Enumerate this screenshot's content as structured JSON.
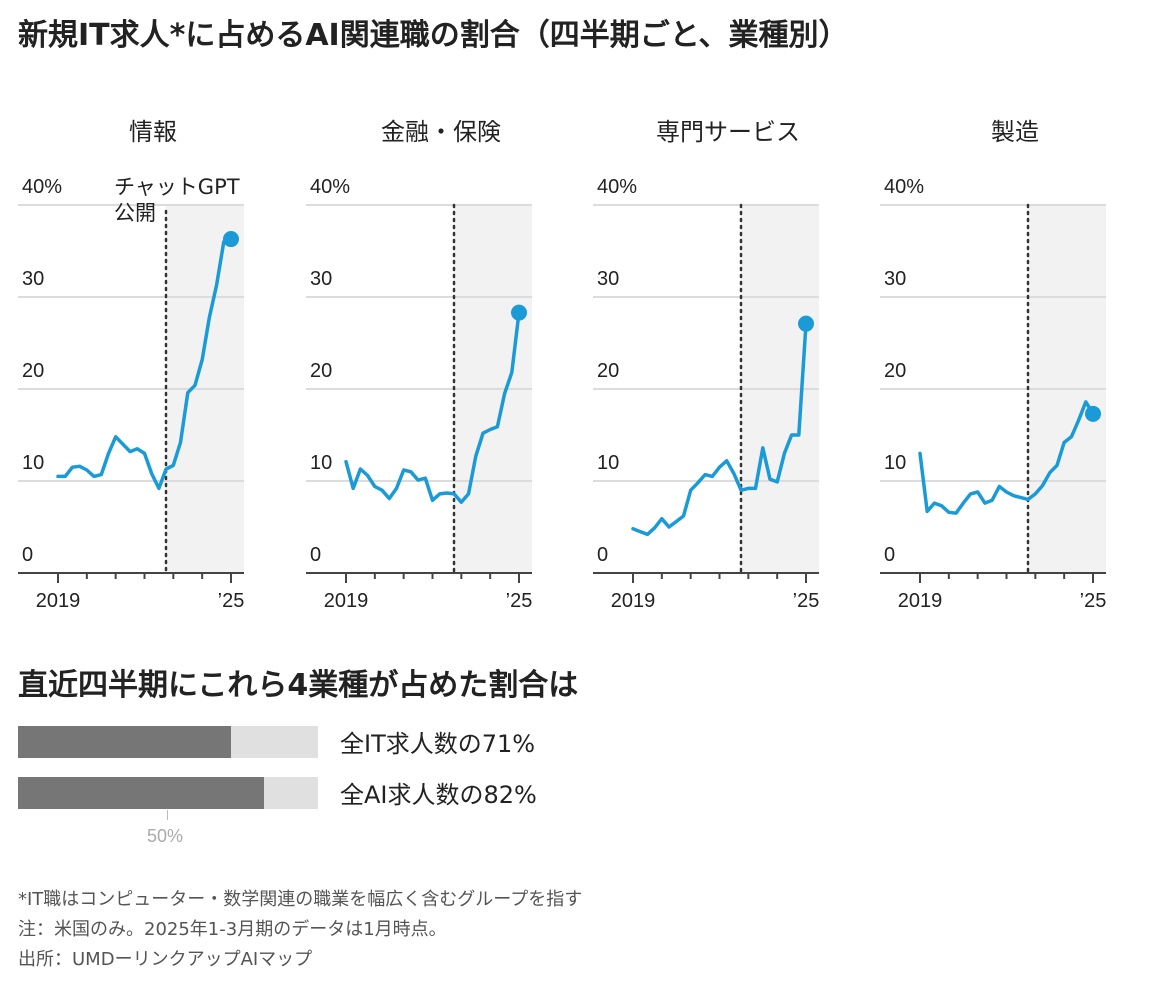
{
  "title": "新規IT求人*に占めるAI関連職の割合（四半期ごと、業種別）",
  "colors": {
    "line": "#1a9ad6",
    "shade": "#f2f2f2",
    "grid": "#dcdcdc",
    "bar_fill": "#767676",
    "bar_bg": "#e0e0e0"
  },
  "chart_data": [
    {
      "type": "line",
      "title": "情報",
      "ylim": [
        0,
        40
      ],
      "yticks": [
        "0",
        "10",
        "20",
        "30",
        "40%"
      ],
      "xtick_labels": [
        "2019",
        "’25"
      ],
      "annotation": "チャットGPT\n公開",
      "values": [
        10.5,
        10.5,
        11.5,
        11.6,
        11.2,
        10.5,
        10.7,
        13,
        14.8,
        14,
        13.2,
        13.5,
        13,
        10.8,
        9.2,
        11.3,
        11.7,
        14.2,
        19.6,
        20.4,
        23.2,
        27.8,
        31.3,
        36,
        36.3
      ]
    },
    {
      "type": "line",
      "title": "金融・保険",
      "ylim": [
        0,
        40
      ],
      "yticks": [
        "0",
        "10",
        "20",
        "30",
        "40%"
      ],
      "xtick_labels": [
        "2019",
        "’25"
      ],
      "values": [
        12.1,
        9.2,
        11.3,
        10.6,
        9.4,
        9.0,
        8.1,
        9.2,
        11.2,
        11.0,
        10.1,
        10.3,
        7.9,
        8.6,
        8.7,
        8.6,
        7.7,
        8.6,
        12.7,
        15.2,
        15.6,
        15.9,
        19.5,
        21.8,
        28.3
      ]
    },
    {
      "type": "line",
      "title": "専門サービス",
      "ylim": [
        0,
        40
      ],
      "yticks": [
        "0",
        "10",
        "20",
        "30",
        "40%"
      ],
      "xtick_labels": [
        "2019",
        "’25"
      ],
      "values": [
        4.8,
        4.5,
        4.2,
        4.9,
        5.9,
        5.0,
        5.6,
        6.2,
        9.0,
        9.8,
        10.7,
        10.5,
        11.5,
        12.2,
        10.8,
        9.0,
        9.2,
        9.2,
        13.6,
        10.2,
        9.9,
        13.0,
        15.0,
        15.0,
        27.1
      ]
    },
    {
      "type": "line",
      "title": "製造",
      "ylim": [
        0,
        40
      ],
      "yticks": [
        "0",
        "10",
        "20",
        "30",
        "40%"
      ],
      "xtick_labels": [
        "2019",
        "’25"
      ],
      "values": [
        13.0,
        6.7,
        7.6,
        7.3,
        6.6,
        6.5,
        7.6,
        8.6,
        8.8,
        7.6,
        7.9,
        9.4,
        8.8,
        8.4,
        8.2,
        8.0,
        8.6,
        9.5,
        10.9,
        11.7,
        14.2,
        14.8,
        16.6,
        18.6,
        17.3
      ]
    }
  ],
  "share_section": {
    "title": "直近四半期にこれら4業種が占めた割合は",
    "bars": [
      {
        "label": "全IT求人数の71%",
        "value": 71
      },
      {
        "label": "全AI求人数の82%",
        "value": 82
      }
    ],
    "reference_label": "50%"
  },
  "notes": [
    "*IT職はコンピューター・数学関連の職業を幅広く含むグループを指す",
    "注：米国のみ。2025年1-3月期のデータは1月時点。",
    "出所：UMDーリンクアップAIマップ"
  ]
}
